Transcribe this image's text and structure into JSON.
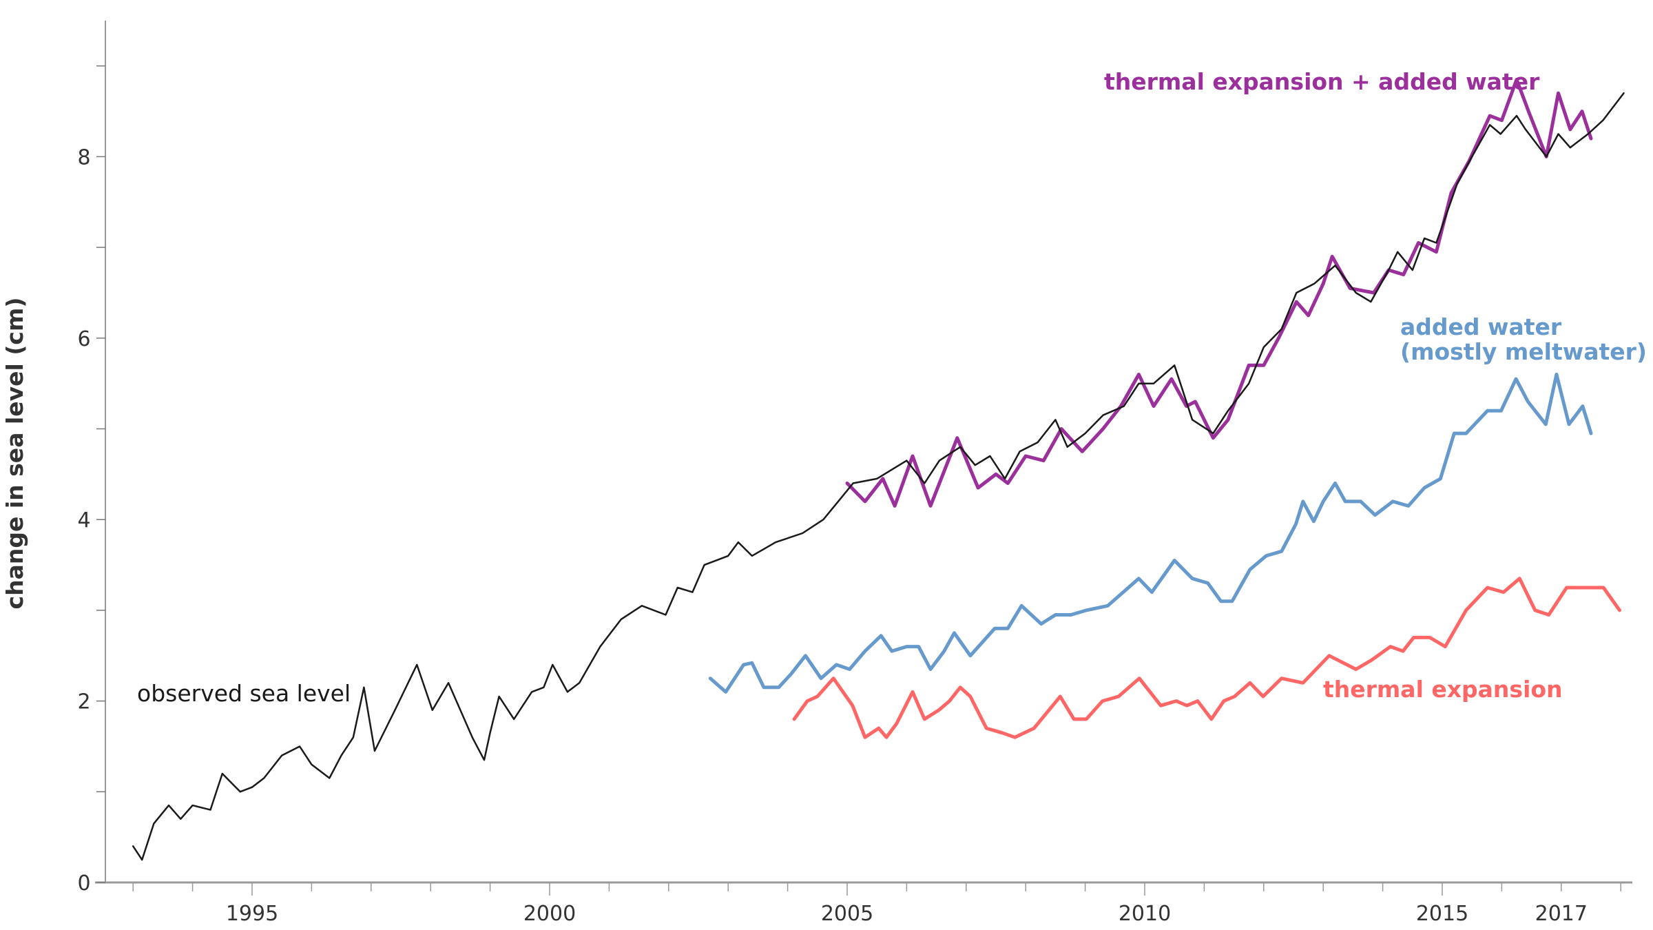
{
  "chart_data": {
    "type": "line",
    "title": "",
    "xlabel": "",
    "ylabel": "change in sea level (cm)",
    "xlim": [
      1992.6,
      2018.4
    ],
    "ylim": [
      0,
      9.5
    ],
    "x_ticks": [
      1995,
      2000,
      2005,
      2010,
      2015,
      2017
    ],
    "x_tick_labels": [
      "1995",
      "2000",
      "2005",
      "2010",
      "2015",
      "2017"
    ],
    "y_ticks": [
      0,
      2,
      4,
      6,
      8
    ],
    "y_tick_labels": [
      "0",
      "2",
      "4",
      "6",
      "8"
    ],
    "grid": false,
    "series": [
      {
        "name": "observed sea level",
        "label_lines": [
          "observed sea level"
        ],
        "color": "#1a1a1a",
        "x": [
          1993.0,
          1993.15,
          1993.35,
          1993.6,
          1993.8,
          1994.0,
          1994.3,
          1994.5,
          1994.8,
          1995.0,
          1995.2,
          1995.5,
          1995.8,
          1996.0,
          1996.3,
          1996.5,
          1996.7,
          1996.88,
          1997.06,
          1997.4,
          1997.77,
          1998.03,
          1998.3,
          1998.7,
          1998.9,
          1999.0,
          1999.15,
          1999.4,
          1999.7,
          1999.9,
          2000.05,
          2000.3,
          2000.5,
          2000.85,
          2001.2,
          2001.55,
          2001.95,
          2002.15,
          2002.4,
          2002.6,
          2003.0,
          2003.17,
          2003.4,
          2003.8,
          2004.25,
          2004.6,
          2004.85,
          2005.1,
          2005.5,
          2006.0,
          2006.3,
          2006.55,
          2006.9,
          2007.15,
          2007.4,
          2007.65,
          2007.9,
          2008.2,
          2008.5,
          2008.7,
          2009.0,
          2009.3,
          2009.65,
          2009.9,
          2010.15,
          2010.5,
          2010.8,
          2011.15,
          2011.4,
          2011.75,
          2012.0,
          2012.3,
          2012.55,
          2012.85,
          2013.2,
          2013.55,
          2013.8,
          2014.1,
          2014.25,
          2014.5,
          2014.7,
          2014.9,
          2015.25,
          2015.5,
          2015.8,
          2015.98,
          2016.25,
          2016.4,
          2016.75,
          2016.95,
          2017.15,
          2017.45,
          2017.7,
          2018.05
        ],
        "y": [
          0.4,
          0.25,
          0.65,
          0.85,
          0.7,
          0.85,
          0.8,
          1.2,
          1.0,
          1.05,
          1.15,
          1.4,
          1.5,
          1.3,
          1.15,
          1.4,
          1.6,
          2.15,
          1.45,
          1.9,
          2.4,
          1.9,
          2.2,
          1.6,
          1.35,
          1.65,
          2.05,
          1.8,
          2.1,
          2.15,
          2.4,
          2.1,
          2.2,
          2.6,
          2.9,
          3.05,
          2.95,
          3.25,
          3.2,
          3.5,
          3.6,
          3.75,
          3.6,
          3.75,
          3.85,
          4.0,
          4.2,
          4.4,
          4.45,
          4.65,
          4.4,
          4.65,
          4.8,
          4.6,
          4.7,
          4.45,
          4.75,
          4.85,
          5.1,
          4.8,
          4.95,
          5.15,
          5.25,
          5.5,
          5.5,
          5.7,
          5.1,
          4.95,
          5.2,
          5.5,
          5.9,
          6.1,
          6.5,
          6.6,
          6.8,
          6.5,
          6.4,
          6.75,
          6.95,
          6.75,
          7.1,
          7.05,
          7.7,
          8.0,
          8.35,
          8.25,
          8.45,
          8.3,
          8.0,
          8.25,
          8.1,
          8.25,
          8.4,
          8.7
        ]
      },
      {
        "name": "thermal expansion + added water",
        "label_lines": [
          "thermal expansion + added water"
        ],
        "color": "#9b2f9b",
        "x": [
          2005.0,
          2005.3,
          2005.6,
          2005.8,
          2006.1,
          2006.4,
          2006.85,
          2007.2,
          2007.5,
          2007.7,
          2008.0,
          2008.3,
          2008.6,
          2008.95,
          2009.3,
          2009.6,
          2009.9,
          2010.15,
          2010.45,
          2010.7,
          2010.85,
          2011.15,
          2011.4,
          2011.75,
          2012.0,
          2012.25,
          2012.55,
          2012.75,
          2013.0,
          2013.15,
          2013.45,
          2013.85,
          2014.1,
          2014.35,
          2014.6,
          2014.9,
          2015.15,
          2015.45,
          2015.8,
          2016.0,
          2016.25,
          2016.45,
          2016.75,
          2016.95,
          2017.15,
          2017.35,
          2017.5
        ],
        "y": [
          4.4,
          4.2,
          4.45,
          4.15,
          4.7,
          4.15,
          4.9,
          4.35,
          4.5,
          4.4,
          4.7,
          4.65,
          5.0,
          4.75,
          5.0,
          5.25,
          5.6,
          5.25,
          5.55,
          5.25,
          5.3,
          4.9,
          5.1,
          5.7,
          5.7,
          6.0,
          6.4,
          6.25,
          6.6,
          6.9,
          6.55,
          6.5,
          6.75,
          6.7,
          7.05,
          6.95,
          7.6,
          7.95,
          8.45,
          8.4,
          8.85,
          8.5,
          8.0,
          8.7,
          8.3,
          8.5,
          8.2
        ]
      },
      {
        "name": "added water (mostly meltwater)",
        "label_lines": [
          "added water",
          "(mostly meltwater)"
        ],
        "color": "#6699cc",
        "x": [
          2002.7,
          2002.96,
          2003.26,
          2003.4,
          2003.6,
          2003.85,
          2004.06,
          2004.3,
          2004.56,
          2004.82,
          2005.04,
          2005.3,
          2005.57,
          2005.75,
          2006.0,
          2006.2,
          2006.4,
          2006.63,
          2006.8,
          2007.07,
          2007.48,
          2007.7,
          2007.93,
          2008.26,
          2008.5,
          2008.76,
          2009.02,
          2009.38,
          2009.9,
          2010.12,
          2010.5,
          2010.8,
          2011.06,
          2011.28,
          2011.47,
          2011.77,
          2012.04,
          2012.3,
          2012.54,
          2012.66,
          2012.84,
          2013.0,
          2013.2,
          2013.37,
          2013.63,
          2013.87,
          2014.17,
          2014.43,
          2014.7,
          2014.97,
          2015.2,
          2015.4,
          2015.76,
          2015.99,
          2016.24,
          2016.44,
          2016.74,
          2016.92,
          2017.13,
          2017.36,
          2017.5
        ],
        "y": [
          2.25,
          2.1,
          2.4,
          2.42,
          2.15,
          2.15,
          2.3,
          2.5,
          2.25,
          2.4,
          2.35,
          2.55,
          2.72,
          2.55,
          2.6,
          2.6,
          2.35,
          2.55,
          2.75,
          2.5,
          2.8,
          2.8,
          3.05,
          2.85,
          2.95,
          2.95,
          3.0,
          3.05,
          3.35,
          3.2,
          3.55,
          3.35,
          3.3,
          3.1,
          3.1,
          3.45,
          3.6,
          3.65,
          3.95,
          4.2,
          3.98,
          4.2,
          4.4,
          4.2,
          4.2,
          4.05,
          4.2,
          4.15,
          4.35,
          4.45,
          4.95,
          4.95,
          5.2,
          5.2,
          5.55,
          5.3,
          5.05,
          5.6,
          5.05,
          5.25,
          4.95
        ]
      },
      {
        "name": "thermal expansion",
        "label_lines": [
          "thermal expansion"
        ],
        "color": "#ff6666",
        "x": [
          2004.11,
          2004.33,
          2004.5,
          2004.77,
          2005.09,
          2005.3,
          2005.53,
          2005.66,
          2005.83,
          2006.1,
          2006.3,
          2006.54,
          2006.72,
          2006.9,
          2007.07,
          2007.34,
          2007.6,
          2007.82,
          2008.14,
          2008.58,
          2008.81,
          2009.02,
          2009.29,
          2009.56,
          2009.91,
          2010.27,
          2010.53,
          2010.71,
          2010.89,
          2011.12,
          2011.33,
          2011.51,
          2011.77,
          2011.99,
          2012.3,
          2012.66,
          2013.1,
          2013.55,
          2013.81,
          2014.13,
          2014.34,
          2014.52,
          2014.79,
          2015.05,
          2015.4,
          2015.76,
          2016.03,
          2016.3,
          2016.56,
          2016.79,
          2017.09,
          2017.36,
          2017.71,
          2017.98
        ],
        "y": [
          1.8,
          2.0,
          2.05,
          2.25,
          1.95,
          1.6,
          1.7,
          1.6,
          1.75,
          2.1,
          1.8,
          1.9,
          2.0,
          2.15,
          2.05,
          1.7,
          1.65,
          1.6,
          1.7,
          2.05,
          1.8,
          1.8,
          2.0,
          2.05,
          2.25,
          1.95,
          2.0,
          1.95,
          2.0,
          1.8,
          2.0,
          2.05,
          2.2,
          2.05,
          2.25,
          2.2,
          2.5,
          2.35,
          2.45,
          2.6,
          2.55,
          2.7,
          2.7,
          2.6,
          3.0,
          3.25,
          3.2,
          3.35,
          3.0,
          2.95,
          3.25,
          3.25,
          3.25,
          3.0
        ]
      }
    ]
  }
}
